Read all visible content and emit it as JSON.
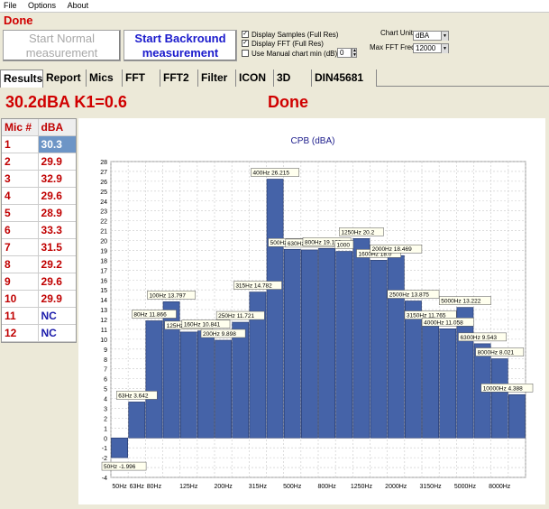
{
  "menu": {
    "file": "File",
    "options": "Options",
    "about": "About"
  },
  "status_top": "Done",
  "buttons": {
    "start_normal": "Start Normal measurement",
    "start_background": "Start Backround measurement"
  },
  "options": {
    "display_samples": "Display Samples (Full Res)",
    "display_fft": "Display FFT (Full Res)",
    "manual_chart_min": "Use Manual chart min (dB)",
    "manual_chart_min_value": "0",
    "chart_units_label": "Chart Units",
    "chart_units_value": "dBA",
    "max_fft_label": "Max FFT Freq",
    "max_fft_value": "12000"
  },
  "tabs": [
    "Results",
    "Report",
    "Mics",
    "FFT",
    "FFT2",
    "Filter",
    "ICON",
    "3D",
    "DIN45681"
  ],
  "readout": "30.2dBA K1=0.6",
  "status_big": "Done",
  "mic_table": {
    "header": [
      "Mic #",
      "dBA"
    ],
    "rows": [
      [
        "1",
        "30.3"
      ],
      [
        "2",
        "29.9"
      ],
      [
        "3",
        "32.9"
      ],
      [
        "4",
        "29.6"
      ],
      [
        "5",
        "28.9"
      ],
      [
        "6",
        "33.3"
      ],
      [
        "7",
        "31.5"
      ],
      [
        "8",
        "29.2"
      ],
      [
        "9",
        "29.6"
      ],
      [
        "10",
        "29.9"
      ],
      [
        "11",
        "NC"
      ],
      [
        "12",
        "NC"
      ]
    ]
  },
  "colors": {
    "bar": "#4563a8",
    "accent_red": "#d00000",
    "selected": "#6d95c6"
  },
  "chart_data": {
    "type": "bar",
    "title": "CPB (dBA)",
    "ylim": [
      -4,
      28
    ],
    "yticks": [
      -4,
      -3,
      -2,
      -1,
      0,
      1,
      2,
      3,
      4,
      5,
      6,
      7,
      8,
      9,
      10,
      11,
      12,
      13,
      14,
      15,
      16,
      17,
      18,
      19,
      20,
      21,
      22,
      23,
      24,
      25,
      26,
      27,
      28
    ],
    "grid": true,
    "categories": [
      "50Hz",
      "63Hz",
      "80Hz",
      "100Hz",
      "125Hz",
      "160Hz",
      "200Hz",
      "250Hz",
      "315Hz",
      "400Hz",
      "500Hz",
      "630Hz",
      "800Hz",
      "1000",
      "1250Hz",
      "1600Hz",
      "2000Hz",
      "2500Hz",
      "3150Hz",
      "4000Hz",
      "5000Hz",
      "6300Hz",
      "8000Hz",
      "10000Hz"
    ],
    "values": [
      -1.996,
      3.642,
      11.866,
      13.797,
      10.731,
      10.841,
      9.898,
      11.721,
      14.782,
      26.215,
      19.111,
      19.048,
      19.196,
      18.9,
      20.2,
      18.0,
      18.469,
      13.875,
      11.765,
      11.058,
      13.222,
      9.543,
      8.021,
      4.388
    ],
    "data_labels": [
      "50Hz -1.996",
      "63Hz 3.642",
      "80Hz 11.866",
      "100Hz 13.797",
      "125Hz 10.731",
      "160Hz 10.841",
      "200Hz 9.898",
      "250Hz 11.721",
      "315Hz 14.782",
      "400Hz 26.215",
      "500Hz 19.111",
      "630Hz 19.048",
      "800Hz 19.196",
      "1000",
      "1250Hz 20.2",
      "1600Hz 18.0",
      "2000Hz 18.469",
      "2500Hz 13.875",
      "3150Hz 11.765",
      "4000Hz 11.058",
      "5000Hz 13.222",
      "6300Hz 9.543",
      "8000Hz 8.021",
      "10000Hz 4.388"
    ],
    "xtick_labels": [
      "50Hz",
      "63Hz",
      "80Hz",
      "125Hz",
      "200Hz",
      "315Hz",
      "500Hz",
      "800Hz",
      "1250Hz",
      "2000Hz",
      "3150Hz",
      "5000Hz",
      "8000Hz"
    ],
    "xtick_indices": [
      0,
      1,
      2,
      4,
      6,
      8,
      10,
      12,
      14,
      16,
      18,
      20,
      22
    ]
  }
}
